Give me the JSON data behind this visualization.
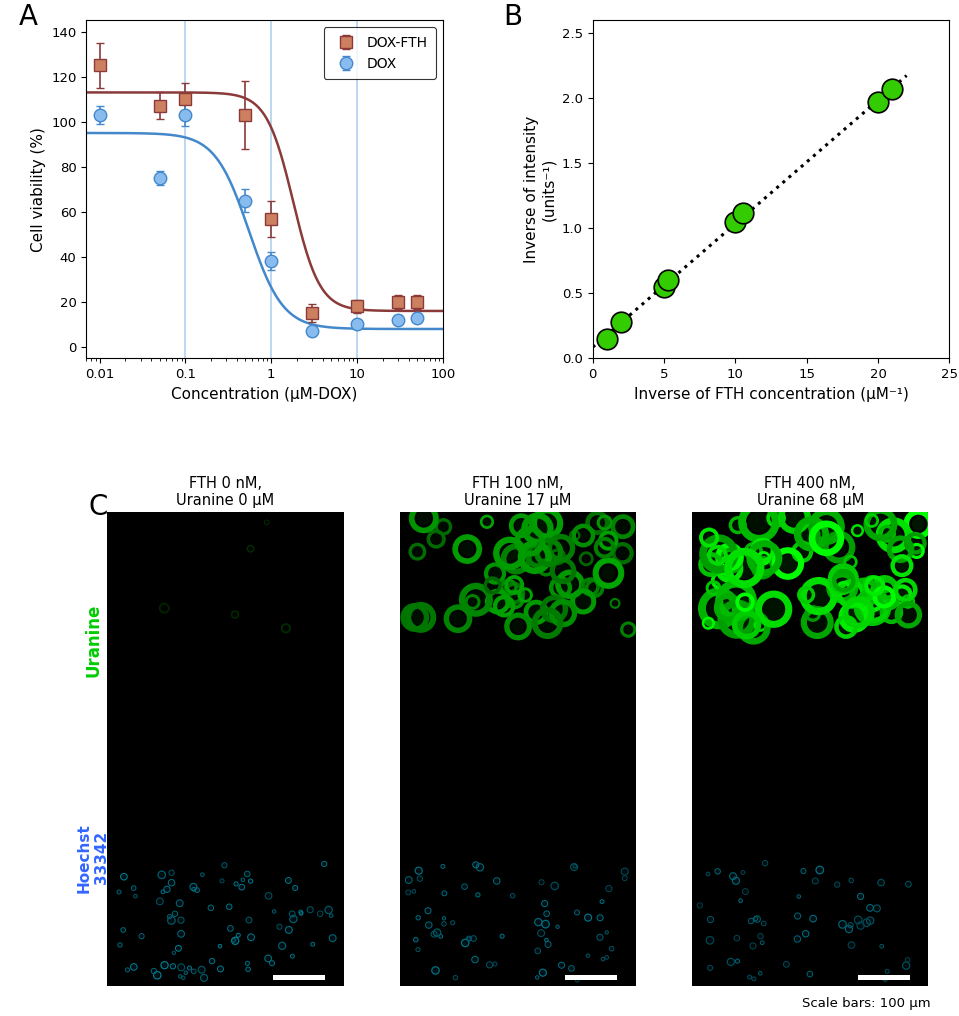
{
  "panel_A": {
    "title_label": "A",
    "dox_fth_x": [
      0.01,
      0.05,
      0.1,
      0.5,
      1.0,
      3.0,
      10.0,
      30.0,
      50.0
    ],
    "dox_fth_y": [
      125,
      107,
      110,
      103,
      57,
      15,
      18,
      20,
      20
    ],
    "dox_fth_err": [
      10,
      6,
      7,
      15,
      8,
      4,
      3,
      3,
      3
    ],
    "dox_x": [
      0.01,
      0.05,
      0.1,
      0.5,
      1.0,
      3.0,
      10.0,
      30.0,
      50.0
    ],
    "dox_y": [
      103,
      75,
      103,
      65,
      38,
      7,
      10,
      12,
      13
    ],
    "dox_err": [
      4,
      3,
      5,
      5,
      4,
      2,
      2,
      2,
      2
    ],
    "dox_fth_color": "#8B3A3A",
    "dox_fth_face": "#CD8060",
    "dox_color": "#4488CC",
    "dox_face": "#88BBEE",
    "xlim": [
      0.007,
      100
    ],
    "ylim": [
      -5,
      145
    ],
    "yticks": [
      0,
      20,
      40,
      60,
      80,
      100,
      120,
      140
    ],
    "xlabel": "Concentration (μM-DOX)",
    "ylabel": "Cell viability (%)",
    "legend_labels": [
      "DOX-FTH",
      "DOX"
    ],
    "vlines": [
      0.1,
      1.0,
      10.0
    ],
    "vline_color": "#AACCEE"
  },
  "panel_B": {
    "title_label": "B",
    "x_data": [
      1.0,
      2.0,
      5.0,
      5.3,
      10.0,
      10.5,
      20.0,
      21.0
    ],
    "y_data": [
      0.15,
      0.28,
      0.55,
      0.6,
      1.05,
      1.12,
      1.97,
      2.07
    ],
    "marker_color_face": "#33CC00",
    "marker_color_edge": "#000000",
    "xlabel": "Inverse of FTH concentration (μM⁻¹)",
    "ylabel": "Inverse of intensity\n(units⁻¹)",
    "xlim": [
      0,
      25
    ],
    "ylim": [
      0,
      2.6
    ],
    "yticks": [
      0.0,
      0.5,
      1.0,
      1.5,
      2.0,
      2.5
    ],
    "xticks": [
      0,
      5,
      10,
      15,
      20,
      25
    ]
  },
  "panel_C": {
    "title_label": "C",
    "col_titles": [
      "FTH 0 nM,\nUranine 0 μM",
      "FTH 100 nM,\nUranine 17 μM",
      "FTH 400 nM,\nUranine 68 μM"
    ],
    "uranine_label": "Uranine",
    "hoechst_label": "Hoechst\n33342",
    "scale_bar_label": "Scale bars: 100 μm"
  }
}
